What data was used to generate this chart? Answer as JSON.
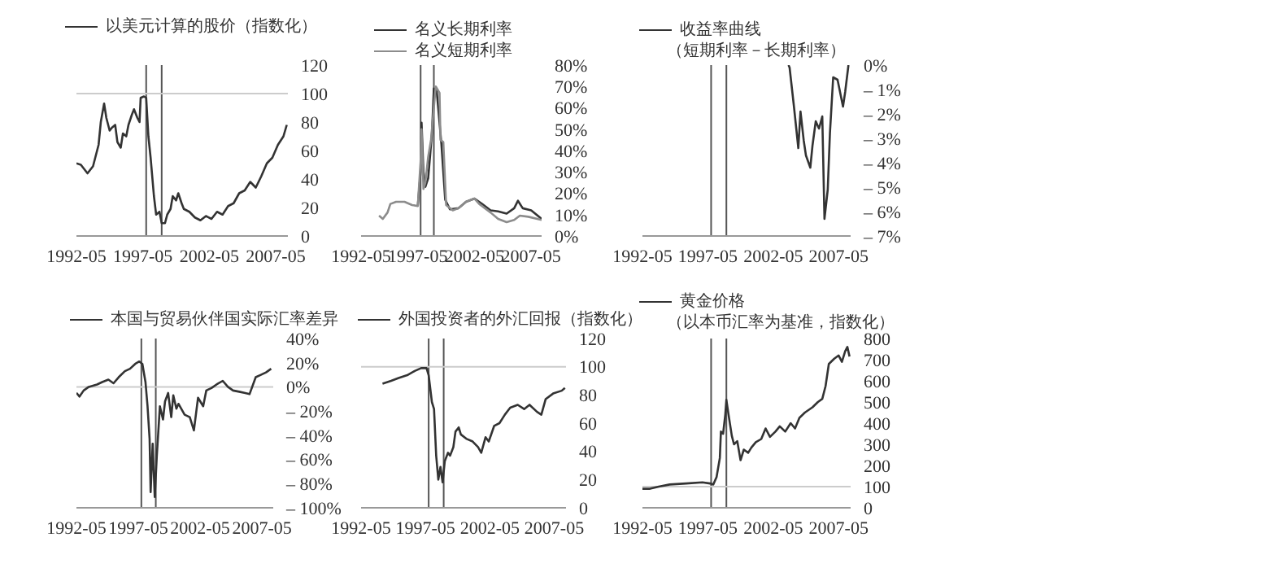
{
  "chart_data": [
    {
      "type": "line",
      "legend": "top",
      "xlim": [
        "1992-05",
        "2008-04"
      ],
      "xticks": [
        "1992-05",
        "1997-05",
        "2002-05",
        "2007-05"
      ],
      "ylim": [
        0,
        120
      ],
      "yticks": [
        0,
        20,
        40,
        60,
        80,
        100,
        120
      ],
      "ref_lines": [
        {
          "axis": "x",
          "value": "1997-08",
          "color": "#555555"
        },
        {
          "axis": "x",
          "value": "1998-10",
          "color": "#555555"
        },
        {
          "axis": "y",
          "value": 100,
          "color": "#cccccc"
        }
      ],
      "series": [
        {
          "name": "以美元计算的股价（指数化）",
          "color": "#333333",
          "x": [
            "1992-05",
            "1992-09",
            "1992-12",
            "1993-03",
            "1993-08",
            "1993-10",
            "1994-01",
            "1994-03",
            "1994-06",
            "1994-08",
            "1994-11",
            "1995-01",
            "1995-04",
            "1995-06",
            "1995-09",
            "1995-11",
            "1996-02",
            "1996-04",
            "1996-07",
            "1996-09",
            "1996-12",
            "1997-02",
            "1997-03",
            "1997-06",
            "1997-08",
            "1997-10",
            "1997-12",
            "1998-03",
            "1998-05",
            "1998-08",
            "1998-10",
            "1999-01",
            "1999-03",
            "1999-06",
            "1999-08",
            "1999-11",
            "2000-01",
            "2000-04",
            "2000-06",
            "2000-11",
            "2001-04",
            "2001-09",
            "2002-02",
            "2002-07",
            "2002-12",
            "2003-05",
            "2003-10",
            "2004-03",
            "2004-08",
            "2005-01",
            "2005-06",
            "2005-11",
            "2006-04",
            "2006-09",
            "2007-02",
            "2007-07",
            "2007-12",
            "2008-03"
          ],
          "values": [
            51,
            50,
            47,
            44,
            49,
            55,
            64,
            80,
            93,
            83,
            74,
            76,
            78,
            66,
            62,
            72,
            70,
            78,
            85,
            89,
            83,
            80,
            97,
            98,
            97,
            70,
            55,
            28,
            15,
            17,
            9,
            9,
            15,
            19,
            28,
            25,
            30,
            23,
            19,
            17,
            13,
            11,
            14,
            12,
            17,
            15,
            21,
            23,
            30,
            32,
            38,
            34,
            42,
            51,
            55,
            64,
            70,
            78
          ]
        }
      ]
    },
    {
      "type": "line",
      "legend": "top left",
      "xlim": [
        "1992-05",
        "2008-04"
      ],
      "xticks": [
        "1992-05",
        "1997-05",
        "2002-05",
        "2007-05"
      ],
      "ylim": [
        0,
        80
      ],
      "yticks": [
        {
          "value": 0,
          "label": "0%"
        },
        {
          "value": 10,
          "label": "10%"
        },
        {
          "value": 20,
          "label": "20%"
        },
        {
          "value": 30,
          "label": "30%"
        },
        {
          "value": 40,
          "label": "40%"
        },
        {
          "value": 50,
          "label": "50%"
        },
        {
          "value": 60,
          "label": "60%"
        },
        {
          "value": 70,
          "label": "70%"
        },
        {
          "value": 80,
          "label": "80%"
        }
      ],
      "ref_lines": [
        {
          "axis": "x",
          "value": "1997-08",
          "color": "#555555"
        },
        {
          "axis": "x",
          "value": "1998-10",
          "color": "#555555"
        }
      ],
      "series": [
        {
          "name": "名义长期利率",
          "color": "#333333",
          "x": [
            "1997-05",
            "1997-08",
            "1997-09",
            "1997-11",
            "1998-01",
            "1998-04",
            "1998-08",
            "1998-10",
            "1999-01",
            "1999-04",
            "1999-06",
            "1999-10",
            "2000-03",
            "2000-12",
            "2001-08",
            "2002-05",
            "2003-01",
            "2003-10",
            "2004-06",
            "2005-03",
            "2005-11",
            "2006-03",
            "2006-08",
            "2007-05",
            "2008-04"
          ],
          "values": [
            14,
            30,
            53,
            30,
            23,
            27,
            48,
            69,
            68,
            53,
            43,
            17,
            12.5,
            13,
            16,
            17.5,
            15,
            12,
            11.5,
            10.5,
            13,
            16.5,
            13,
            12,
            8
          ]
        },
        {
          "name": "名义短期利率",
          "color": "#8c8c8c",
          "x": [
            "1993-12",
            "1994-04",
            "1994-09",
            "1994-12",
            "1995-06",
            "1996-03",
            "1996-11",
            "1997-05",
            "1997-08",
            "1997-09",
            "1997-11",
            "1998-01",
            "1998-04",
            "1998-07",
            "1998-12",
            "1999-04",
            "1999-05",
            "1999-08",
            "1999-11",
            "2000-06",
            "2000-12",
            "2001-08",
            "2002-05",
            "2002-10",
            "2003-04",
            "2003-10",
            "2004-06",
            "2005-03",
            "2005-11",
            "2006-05",
            "2007-02",
            "2008-04"
          ],
          "values": [
            9.5,
            8,
            11,
            15,
            16,
            16,
            14.5,
            14,
            35,
            50,
            22,
            25,
            37,
            45,
            70,
            67,
            45,
            44,
            14.5,
            12,
            13,
            16,
            17.5,
            15,
            13,
            11,
            8,
            6.5,
            7.5,
            9.5,
            9,
            7.5
          ]
        }
      ]
    },
    {
      "type": "line",
      "legend": "top left",
      "subtitle": "（短期利率－长期利率）",
      "xlim": [
        "1992-05",
        "2008-04"
      ],
      "xticks": [
        "1992-05",
        "1997-05",
        "2002-05",
        "2007-05"
      ],
      "ylim": [
        -7,
        0
      ],
      "yticks": [
        {
          "value": 0,
          "label": "0%"
        },
        {
          "value": -1,
          "label": "– 1%"
        },
        {
          "value": -2,
          "label": "– 2%"
        },
        {
          "value": -3,
          "label": "– 3%"
        },
        {
          "value": -4,
          "label": "– 4%"
        },
        {
          "value": -5,
          "label": "– 5%"
        },
        {
          "value": -6,
          "label": "– 6%"
        },
        {
          "value": -7,
          "label": "– 7%"
        }
      ],
      "ref_lines": [
        {
          "axis": "x",
          "value": "1997-08",
          "color": "#555555"
        },
        {
          "axis": "x",
          "value": "1998-10",
          "color": "#555555"
        }
      ],
      "series": [
        {
          "name": "收益率曲线",
          "color": "#333333",
          "x": [
            "2003-07",
            "2003-08",
            "2003-12",
            "2004-04",
            "2004-06",
            "2004-09",
            "2004-11",
            "2005-03",
            "2005-05",
            "2005-08",
            "2005-11",
            "2006-02",
            "2006-04",
            "2006-07",
            "2006-09",
            "2006-12",
            "2007-04",
            "2007-09",
            "2007-11",
            "2008-02"
          ],
          "values": [
            0,
            -0.1,
            -1.7,
            -3.4,
            -1.9,
            -3.1,
            -3.7,
            -4.2,
            -3.3,
            -2.3,
            -2.6,
            -2.1,
            -6.3,
            -5.1,
            -2.8,
            -0.5,
            -0.6,
            -1.7,
            -1.1,
            0
          ]
        }
      ]
    },
    {
      "type": "line",
      "legend": "top",
      "xlim": [
        "1992-05",
        "2008-04"
      ],
      "xticks": [
        "1992-05",
        "1997-05",
        "2002-05",
        "2007-05"
      ],
      "ylim": [
        -100,
        40
      ],
      "yticks": [
        {
          "value": 40,
          "label": "40%"
        },
        {
          "value": 20,
          "label": "20%"
        },
        {
          "value": 0,
          "label": "0%"
        },
        {
          "value": -20,
          "label": "– 20%"
        },
        {
          "value": -40,
          "label": "– 40%"
        },
        {
          "value": -60,
          "label": "– 60%"
        },
        {
          "value": -80,
          "label": "– 80%"
        },
        {
          "value": -100,
          "label": "– 100%"
        }
      ],
      "ref_lines": [
        {
          "axis": "x",
          "value": "1997-08",
          "color": "#555555"
        },
        {
          "axis": "x",
          "value": "1998-10",
          "color": "#555555"
        },
        {
          "axis": "y",
          "value": 0,
          "color": "#cccccc"
        }
      ],
      "series": [
        {
          "name": "本国与贸易伙伴国实际汇率差异",
          "color": "#333333",
          "x": [
            "1992-05",
            "1992-08",
            "1992-12",
            "1993-05",
            "1994-01",
            "1994-06",
            "1994-12",
            "1995-05",
            "1995-10",
            "1996-04",
            "1996-09",
            "1997-02",
            "1997-06",
            "1997-09",
            "1997-12",
            "1998-02",
            "1998-04",
            "1998-05",
            "1998-07",
            "1998-09",
            "1998-11",
            "1999-02",
            "1999-05",
            "1999-07",
            "1999-10",
            "2000-01",
            "2000-03",
            "2000-06",
            "2000-08",
            "2001-02",
            "2001-07",
            "2001-11",
            "2002-03",
            "2002-08",
            "2002-11",
            "2003-04",
            "2003-09",
            "2004-03",
            "2004-08",
            "2005-01",
            "2005-07",
            "2005-12",
            "2006-05",
            "2006-11",
            "2007-04",
            "2007-09",
            "2008-02"
          ],
          "values": [
            -5,
            -8,
            -3,
            0,
            2,
            4,
            6,
            3,
            8,
            13,
            15,
            19,
            21,
            19,
            4,
            -16,
            -43,
            -87,
            -47,
            -91,
            -57,
            -16,
            -27,
            -12,
            -5,
            -25,
            -7,
            -18,
            -14,
            -23,
            -25,
            -36,
            -9,
            -16,
            -3,
            -1,
            2,
            5,
            0,
            -3,
            -4,
            -5,
            -6,
            8,
            10,
            12,
            15
          ]
        }
      ]
    },
    {
      "type": "line",
      "legend": "top",
      "xlim": [
        "1992-05",
        "2008-04"
      ],
      "xticks": [
        "1992-05",
        "1997-05",
        "2002-05",
        "2007-05"
      ],
      "ylim": [
        0,
        120
      ],
      "yticks": [
        0,
        20,
        40,
        60,
        80,
        100,
        120
      ],
      "ref_lines": [
        {
          "axis": "x",
          "value": "1997-08",
          "color": "#555555"
        },
        {
          "axis": "x",
          "value": "1998-10",
          "color": "#555555"
        },
        {
          "axis": "y",
          "value": 100,
          "color": "#cccccc"
        }
      ],
      "series": [
        {
          "name": "外国投资者的外汇回报（指数化）",
          "color": "#333333",
          "x": [
            "1994-01",
            "1994-09",
            "1995-04",
            "1995-12",
            "1996-07",
            "1997-01",
            "1997-06",
            "1997-08",
            "1997-11",
            "1998-01",
            "1998-03",
            "1998-05",
            "1998-07",
            "1998-09",
            "1998-11",
            "1999-02",
            "1999-04",
            "1999-07",
            "1999-09",
            "1999-12",
            "2000-02",
            "2000-07",
            "2001-01",
            "2001-06",
            "2001-09",
            "2002-01",
            "2002-04",
            "2002-09",
            "2003-02",
            "2003-07",
            "2003-12",
            "2004-07",
            "2005-01",
            "2005-06",
            "2006-01",
            "2006-05",
            "2006-09",
            "2007-04",
            "2007-12",
            "2008-03"
          ],
          "values": [
            88,
            90,
            92,
            94,
            97,
            99,
            99,
            94,
            75,
            70,
            37,
            20,
            29,
            18,
            33,
            39,
            37,
            43,
            54,
            57,
            52,
            49,
            47,
            43,
            39,
            50,
            47,
            58,
            60,
            66,
            71,
            73,
            70,
            73,
            68,
            66,
            77,
            81,
            83,
            85
          ]
        }
      ]
    },
    {
      "type": "line",
      "legend": "top left",
      "subtitle": "（以本币汇率为基准，指数化）",
      "xlim": [
        "1992-05",
        "2008-04"
      ],
      "xticks": [
        "1992-05",
        "1997-05",
        "2002-05",
        "2007-05"
      ],
      "ylim": [
        0,
        800
      ],
      "yticks": [
        0,
        100,
        200,
        300,
        400,
        500,
        600,
        700,
        800
      ],
      "ref_lines": [
        {
          "axis": "x",
          "value": "1997-08",
          "color": "#555555"
        },
        {
          "axis": "x",
          "value": "1998-10",
          "color": "#555555"
        },
        {
          "axis": "y",
          "value": 100,
          "color": "#cccccc"
        }
      ],
      "series": [
        {
          "name": "黄金价格",
          "color": "#333333",
          "x": [
            "1992-05",
            "1992-12",
            "1993-08",
            "1994-06",
            "1995-09",
            "1996-12",
            "1997-07",
            "1997-10",
            "1998-01",
            "1998-04",
            "1998-05",
            "1998-07",
            "1998-09",
            "1998-10",
            "1998-12",
            "1999-03",
            "1999-05",
            "1999-08",
            "1999-11",
            "2000-02",
            "2000-06",
            "2000-09",
            "2001-01",
            "2001-06",
            "2001-10",
            "2002-02",
            "2002-07",
            "2002-11",
            "2003-04",
            "2003-09",
            "2004-01",
            "2004-05",
            "2004-10",
            "2005-05",
            "2005-10",
            "2006-02",
            "2006-05",
            "2006-08",
            "2007-01",
            "2007-05",
            "2007-08",
            "2007-11",
            "2008-01",
            "2008-03"
          ],
          "values": [
            90,
            90,
            100,
            110,
            115,
            120,
            115,
            110,
            145,
            235,
            360,
            350,
            440,
            510,
            440,
            340,
            300,
            315,
            225,
            275,
            260,
            285,
            310,
            325,
            375,
            335,
            360,
            385,
            360,
            400,
            375,
            425,
            450,
            475,
            500,
            515,
            575,
            680,
            705,
            720,
            690,
            740,
            760,
            715
          ]
        }
      ]
    }
  ]
}
